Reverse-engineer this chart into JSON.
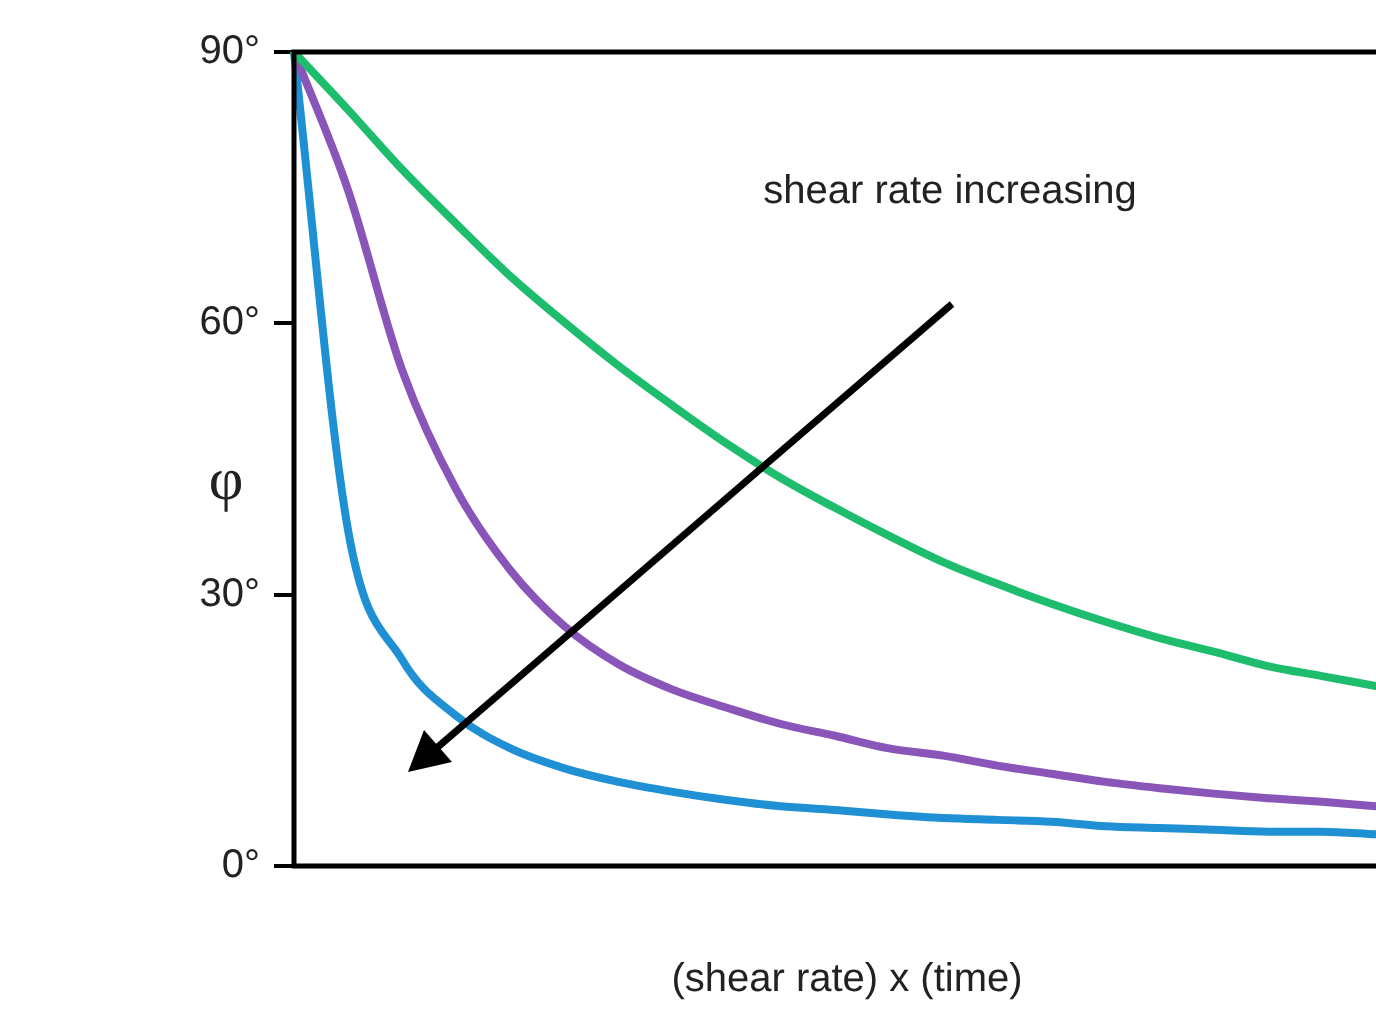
{
  "chart_data": {
    "type": "line",
    "xlabel": "(shear rate) x (time)",
    "ylabel": "φ",
    "annotations": [
      "shear rate increasing"
    ],
    "categories": [
      null,
      null,
      null,
      null,
      null,
      null,
      null,
      null,
      null,
      null,
      null,
      null,
      null,
      null,
      null,
      null,
      null,
      null,
      null,
      null,
      null
    ],
    "series": [
      {
        "color": "#1ebd6e",
        "values": [
          90,
          83.6,
          77,
          71,
          65.2,
          60.1,
          55.3,
          50.9,
          46.7,
          42.9,
          39.6,
          36.5,
          33.6,
          31.2,
          29,
          27,
          25.2,
          23.7,
          22.1,
          21,
          19.9
        ]
      },
      {
        "color": "#8a55b8",
        "values": [
          90,
          74.7,
          54.8,
          41.6,
          32.7,
          26.5,
          22.3,
          19.5,
          17.5,
          15.7,
          14.4,
          13,
          12.2,
          11.1,
          10.2,
          9.3,
          8.6,
          8,
          7.5,
          7.1,
          6.6
        ]
      },
      {
        "color": "#1f90d4",
        "values": [
          90,
          37.1,
          22.8,
          16.6,
          13,
          10.8,
          9.3,
          8.2,
          7.3,
          6.6,
          6.2,
          5.7,
          5.3,
          5.1,
          4.9,
          4.4,
          4.2,
          4,
          3.8,
          3.8,
          3.5
        ]
      }
    ],
    "ylim": [
      0,
      90
    ],
    "yticks": [
      {
        "value": 0,
        "label": "0°"
      },
      {
        "value": 30,
        "label": "30°"
      },
      {
        "value": 60,
        "label": "60°"
      },
      {
        "value": 90,
        "label": "90°"
      }
    ],
    "grid": false,
    "legend": false,
    "marker": "none",
    "line_style": "solid",
    "tick_labels": "y"
  }
}
